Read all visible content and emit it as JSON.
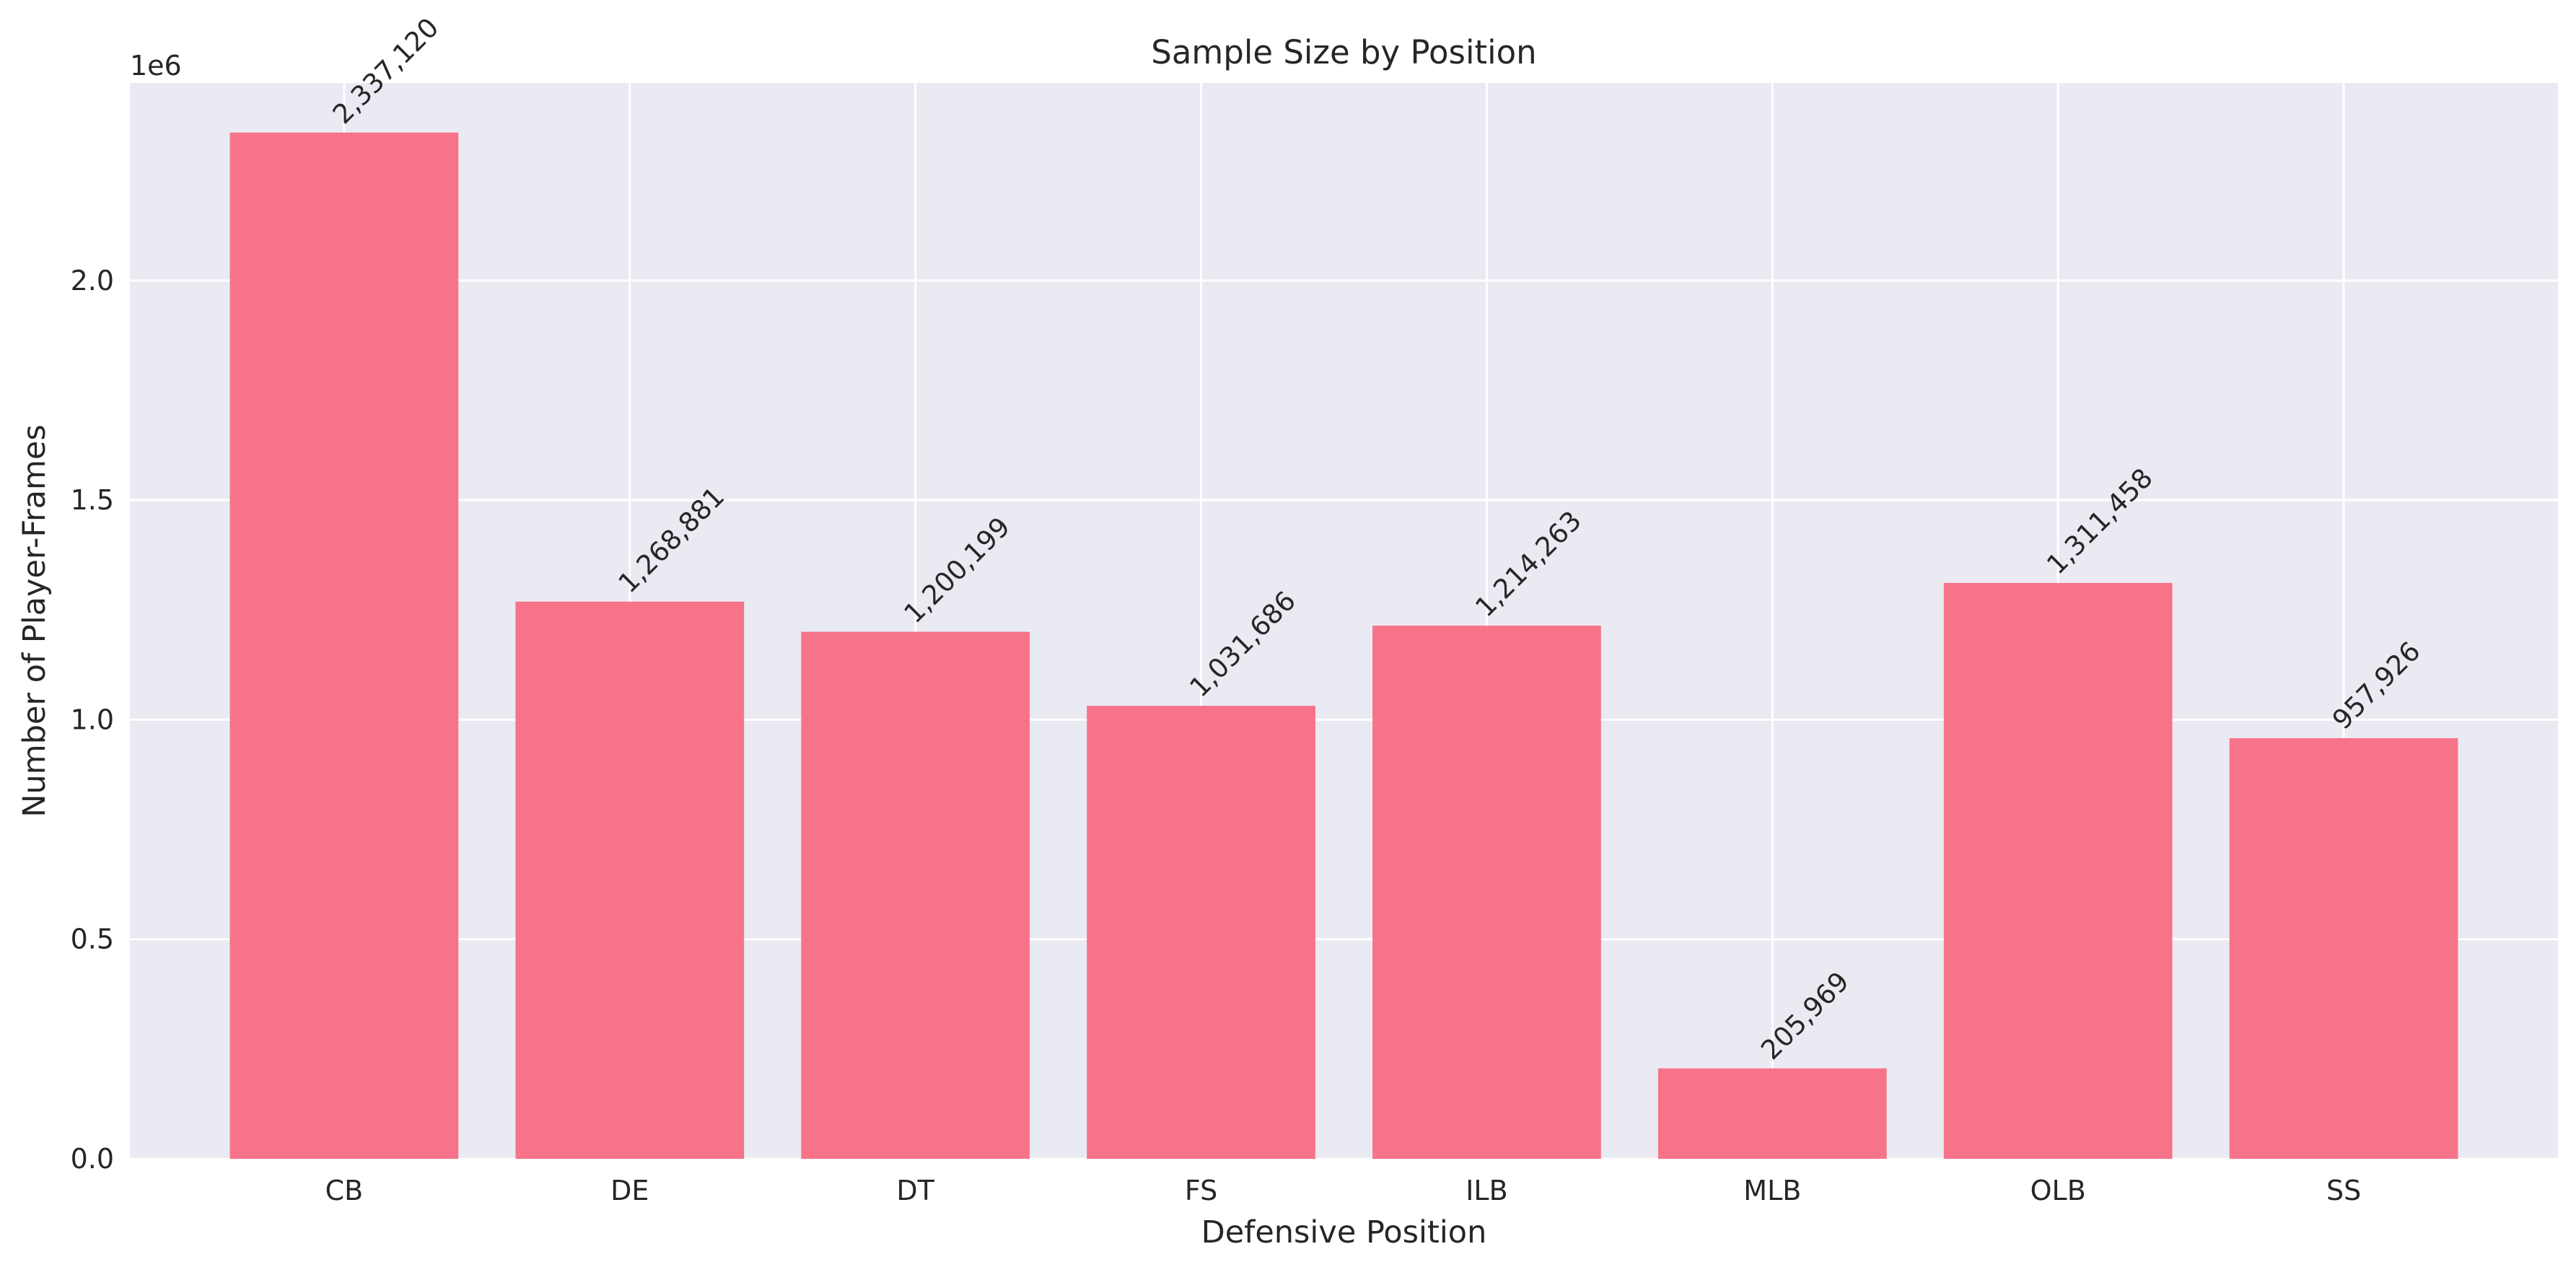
{
  "chart_data": {
    "type": "bar",
    "title": "Sample Size by Position",
    "xlabel": "Defensive Position",
    "ylabel": "Number of Player-Frames",
    "y_offset_label": "1e6",
    "categories": [
      "CB",
      "DE",
      "DT",
      "FS",
      "ILB",
      "MLB",
      "OLB",
      "SS"
    ],
    "values": [
      2337120,
      1268881,
      1200199,
      1031686,
      1214263,
      205969,
      1311458,
      957926
    ],
    "value_labels": [
      "2,337,120",
      "1,268,881",
      "1,200,199",
      "1,031,686",
      "1,214,263",
      "205,969",
      "1,311,458",
      "957,926"
    ],
    "ylim": [
      0,
      2450000
    ],
    "yticks": [
      0,
      500000,
      1000000,
      1500000,
      2000000
    ],
    "ytick_labels": [
      "0.0",
      "0.5",
      "1.0",
      "1.5",
      "2.0"
    ],
    "grid": true,
    "colors": {
      "bar": "#f7738a",
      "plot_background": "#eaeaf2",
      "grid": "#ffffff"
    }
  }
}
